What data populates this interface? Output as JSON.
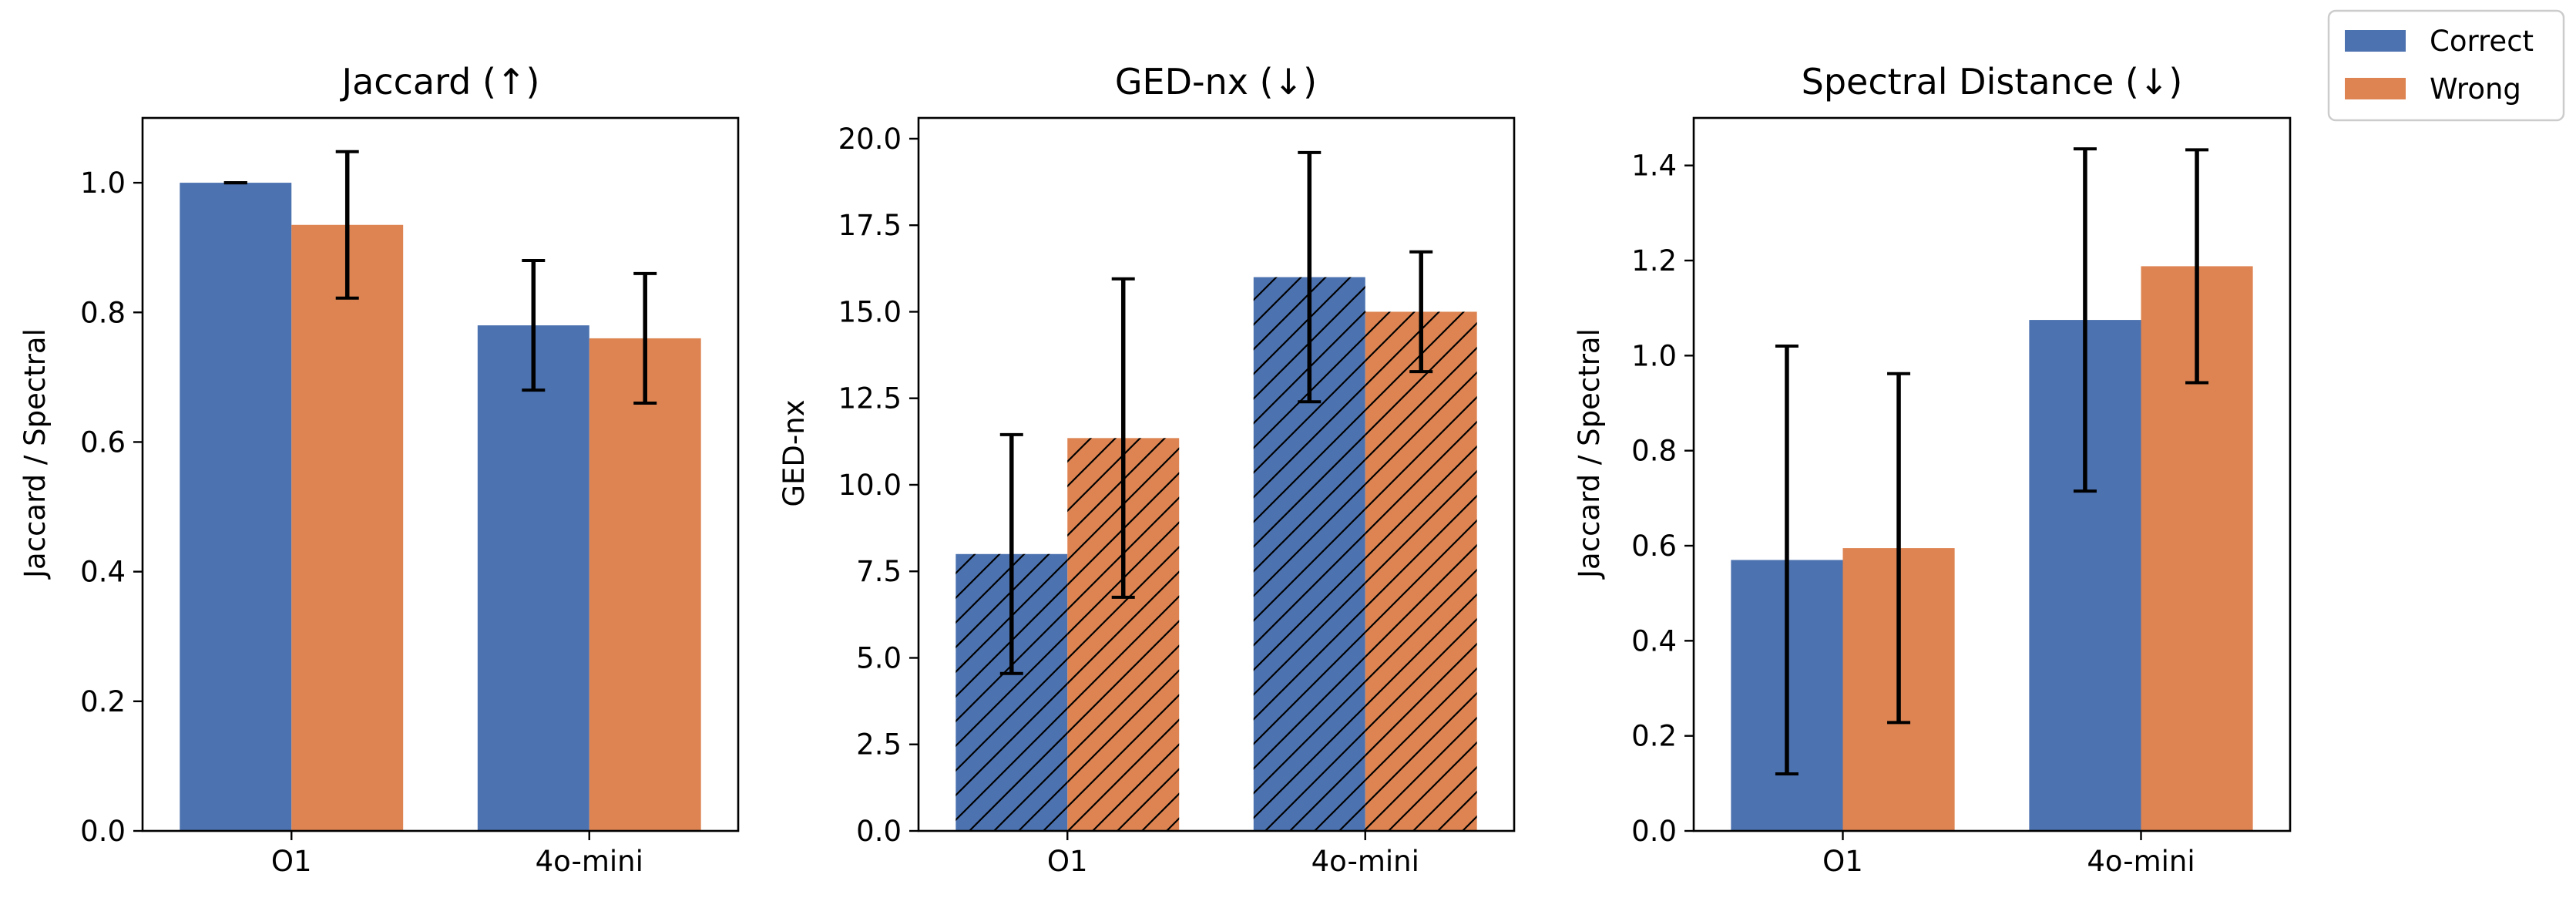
{
  "legend": {
    "position": "top-right",
    "items": [
      {
        "label": "Correct",
        "color": "#4C72B0"
      },
      {
        "label": "Wrong",
        "color": "#DD8452"
      }
    ]
  },
  "chart_data": [
    {
      "type": "bar",
      "title": "Jaccard (↑)",
      "xlabel": "",
      "ylabel": "Jaccard / Spectral",
      "categories": [
        "O1",
        "4o-mini"
      ],
      "ylim": [
        0,
        1.1
      ],
      "yticks": [
        0.0,
        0.2,
        0.4,
        0.6,
        0.8,
        1.0
      ],
      "ytick_labels": [
        "0.0",
        "0.2",
        "0.4",
        "0.6",
        "0.8",
        "1.0"
      ],
      "hatched": false,
      "series": [
        {
          "name": "Correct",
          "color": "#4C72B0",
          "values": [
            1.0,
            0.78
          ],
          "errors": [
            0.0,
            0.1
          ]
        },
        {
          "name": "Wrong",
          "color": "#DD8452",
          "values": [
            0.935,
            0.76
          ],
          "errors": [
            0.113,
            0.1
          ]
        }
      ]
    },
    {
      "type": "bar",
      "title": "GED-nx (↓)",
      "xlabel": "",
      "ylabel": "GED-nx",
      "categories": [
        "O1",
        "4o-mini"
      ],
      "ylim": [
        0,
        20.6
      ],
      "yticks": [
        0.0,
        2.5,
        5.0,
        7.5,
        10.0,
        12.5,
        15.0,
        17.5,
        20.0
      ],
      "ytick_labels": [
        "0.0",
        "2.5",
        "5.0",
        "7.5",
        "10.0",
        "12.5",
        "15.0",
        "17.5",
        "20.0"
      ],
      "hatched": true,
      "series": [
        {
          "name": "Correct",
          "color": "#4C72B0",
          "values": [
            8.0,
            16.0
          ],
          "errors": [
            3.45,
            3.6
          ]
        },
        {
          "name": "Wrong",
          "color": "#DD8452",
          "values": [
            11.35,
            15.0
          ],
          "errors": [
            4.6,
            1.73
          ]
        }
      ]
    },
    {
      "type": "bar",
      "title": "Spectral Distance (↓)",
      "xlabel": "",
      "ylabel": "Jaccard / Spectral",
      "categories": [
        "O1",
        "4o-mini"
      ],
      "ylim": [
        0,
        1.5
      ],
      "yticks": [
        0.0,
        0.2,
        0.4,
        0.6,
        0.8,
        1.0,
        1.2,
        1.4
      ],
      "ytick_labels": [
        "0.0",
        "0.2",
        "0.4",
        "0.6",
        "0.8",
        "1.0",
        "1.2",
        "1.4"
      ],
      "hatched": false,
      "series": [
        {
          "name": "Correct",
          "color": "#4C72B0",
          "values": [
            0.57,
            1.075
          ],
          "errors": [
            0.45,
            0.36
          ]
        },
        {
          "name": "Wrong",
          "color": "#DD8452",
          "values": [
            0.595,
            1.188
          ],
          "errors": [
            0.367,
            0.245
          ]
        }
      ]
    }
  ]
}
